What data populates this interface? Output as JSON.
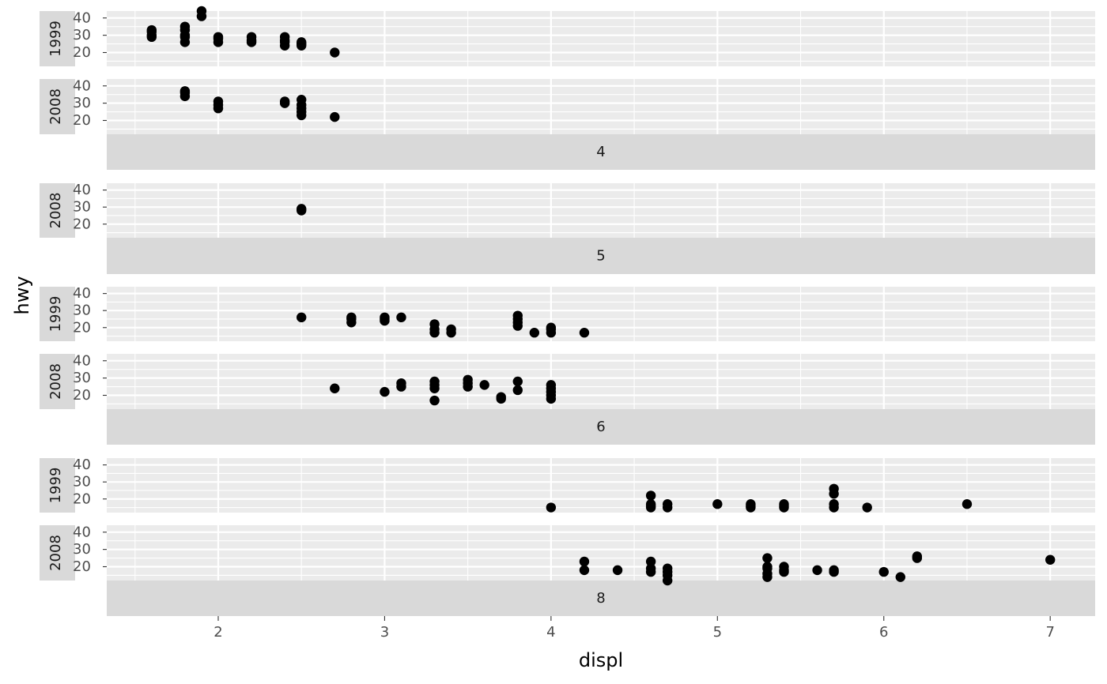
{
  "chart_data": {
    "type": "scatter",
    "xlabel": "displ",
    "ylabel": "hwy",
    "xlim": [
      1.33,
      7.27
    ],
    "ylim": [
      12,
      44
    ],
    "x_ticks": [
      "2",
      "3",
      "4",
      "5",
      "6",
      "7"
    ],
    "y_ticks": [
      "20",
      "30",
      "40"
    ],
    "grid": true,
    "facet_rows": [
      "4",
      "5",
      "6",
      "8"
    ],
    "facet_cols": [
      "1999",
      "2008"
    ],
    "panels": [
      {
        "cyl": "4",
        "year": "1999",
        "points": [
          [
            1.6,
            29
          ],
          [
            1.6,
            30
          ],
          [
            1.6,
            32
          ],
          [
            1.6,
            33
          ],
          [
            1.8,
            26
          ],
          [
            1.8,
            29
          ],
          [
            1.8,
            30
          ],
          [
            1.8,
            33
          ],
          [
            1.8,
            35
          ],
          [
            1.9,
            41
          ],
          [
            1.9,
            44
          ],
          [
            2.0,
            26
          ],
          [
            2.0,
            28
          ],
          [
            2.0,
            29
          ],
          [
            2.2,
            26
          ],
          [
            2.2,
            27
          ],
          [
            2.2,
            29
          ],
          [
            2.4,
            24
          ],
          [
            2.4,
            26
          ],
          [
            2.4,
            27
          ],
          [
            2.4,
            29
          ],
          [
            2.5,
            24
          ],
          [
            2.5,
            25
          ],
          [
            2.5,
            26
          ],
          [
            2.7,
            20
          ]
        ]
      },
      {
        "cyl": "4",
        "year": "2008",
        "points": [
          [
            1.8,
            34
          ],
          [
            1.8,
            36
          ],
          [
            1.8,
            37
          ],
          [
            2.0,
            27
          ],
          [
            2.0,
            29
          ],
          [
            2.0,
            31
          ],
          [
            2.4,
            30
          ],
          [
            2.4,
            31
          ],
          [
            2.5,
            23
          ],
          [
            2.5,
            25
          ],
          [
            2.5,
            27
          ],
          [
            2.5,
            29
          ],
          [
            2.5,
            32
          ],
          [
            2.7,
            22
          ]
        ]
      },
      {
        "cyl": "5",
        "year": "1999",
        "points": []
      },
      {
        "cyl": "5",
        "year": "2008",
        "points": [
          [
            2.5,
            28
          ],
          [
            2.5,
            29
          ]
        ]
      },
      {
        "cyl": "6",
        "year": "1999",
        "points": [
          [
            2.5,
            26
          ],
          [
            2.8,
            23
          ],
          [
            2.8,
            25
          ],
          [
            2.8,
            26
          ],
          [
            3.0,
            24
          ],
          [
            3.0,
            25
          ],
          [
            3.0,
            26
          ],
          [
            3.1,
            26
          ],
          [
            3.3,
            17
          ],
          [
            3.3,
            19
          ],
          [
            3.3,
            22
          ],
          [
            3.4,
            17
          ],
          [
            3.4,
            19
          ],
          [
            3.8,
            21
          ],
          [
            3.8,
            23
          ],
          [
            3.8,
            25
          ],
          [
            3.8,
            27
          ],
          [
            3.9,
            17
          ],
          [
            4.0,
            17
          ],
          [
            4.0,
            19
          ],
          [
            4.0,
            20
          ],
          [
            4.2,
            17
          ]
        ]
      },
      {
        "cyl": "6",
        "year": "2008",
        "points": [
          [
            2.7,
            24
          ],
          [
            3.0,
            22
          ],
          [
            3.1,
            25
          ],
          [
            3.1,
            27
          ],
          [
            3.3,
            17
          ],
          [
            3.3,
            24
          ],
          [
            3.3,
            26
          ],
          [
            3.3,
            28
          ],
          [
            3.5,
            25
          ],
          [
            3.5,
            27
          ],
          [
            3.5,
            29
          ],
          [
            3.6,
            26
          ],
          [
            3.7,
            18
          ],
          [
            3.7,
            19
          ],
          [
            3.8,
            23
          ],
          [
            3.8,
            28
          ],
          [
            4.0,
            18
          ],
          [
            4.0,
            20
          ],
          [
            4.0,
            22
          ],
          [
            4.0,
            24
          ],
          [
            4.0,
            26
          ]
        ]
      },
      {
        "cyl": "8",
        "year": "1999",
        "points": [
          [
            4.0,
            15
          ],
          [
            4.6,
            15
          ],
          [
            4.6,
            16
          ],
          [
            4.6,
            17
          ],
          [
            4.6,
            22
          ],
          [
            4.7,
            15
          ],
          [
            4.7,
            17
          ],
          [
            5.0,
            17
          ],
          [
            5.2,
            15
          ],
          [
            5.2,
            16
          ],
          [
            5.2,
            17
          ],
          [
            5.4,
            15
          ],
          [
            5.4,
            16
          ],
          [
            5.4,
            17
          ],
          [
            5.7,
            15
          ],
          [
            5.7,
            17
          ],
          [
            5.7,
            23
          ],
          [
            5.7,
            26
          ],
          [
            5.9,
            15
          ],
          [
            6.5,
            17
          ]
        ]
      },
      {
        "cyl": "8",
        "year": "2008",
        "points": [
          [
            4.2,
            18
          ],
          [
            4.2,
            23
          ],
          [
            4.4,
            18
          ],
          [
            4.6,
            17
          ],
          [
            4.6,
            19
          ],
          [
            4.6,
            23
          ],
          [
            4.7,
            12
          ],
          [
            4.7,
            15
          ],
          [
            4.7,
            17
          ],
          [
            4.7,
            19
          ],
          [
            5.3,
            14
          ],
          [
            5.3,
            16
          ],
          [
            5.3,
            19
          ],
          [
            5.3,
            20
          ],
          [
            5.3,
            25
          ],
          [
            5.4,
            17
          ],
          [
            5.4,
            18
          ],
          [
            5.4,
            20
          ],
          [
            5.6,
            18
          ],
          [
            5.7,
            17
          ],
          [
            5.7,
            18
          ],
          [
            6.0,
            17
          ],
          [
            6.1,
            14
          ],
          [
            6.2,
            25
          ],
          [
            6.2,
            26
          ],
          [
            7.0,
            24
          ]
        ]
      }
    ]
  }
}
